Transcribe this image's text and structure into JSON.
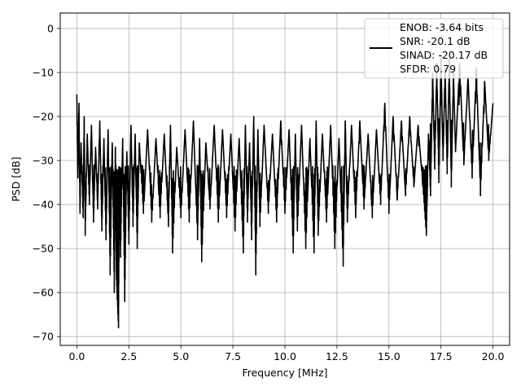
{
  "chart_data": {
    "type": "line",
    "title": "",
    "xlabel": "Frequency [MHz]",
    "ylabel": "PSD [dB]",
    "xlim": [
      -0.8,
      20.8
    ],
    "ylim": [
      -72,
      3.5
    ],
    "xticks": [
      0.0,
      2.5,
      5.0,
      7.5,
      10.0,
      12.5,
      15.0,
      17.5,
      20.0
    ],
    "xtick_labels": [
      "0.0",
      "2.5",
      "5.0",
      "7.5",
      "10.0",
      "12.5",
      "15.0",
      "17.5",
      "20.0"
    ],
    "yticks": [
      0,
      -10,
      -20,
      -30,
      -40,
      -50,
      -60,
      -70
    ],
    "ytick_labels": [
      "0",
      "−10",
      "−20",
      "−30",
      "−40",
      "−50",
      "−60",
      "−70"
    ],
    "grid": true,
    "legend_position": "top-right",
    "line_color": "#000000",
    "series": [
      {
        "name": "",
        "x_start": 0.0,
        "x_end": 20.0,
        "description_points": [
          [
            0.0,
            -15
          ],
          [
            0.05,
            -34
          ],
          [
            0.1,
            -17
          ],
          [
            0.15,
            -42
          ],
          [
            0.2,
            -26
          ],
          [
            0.3,
            -43
          ],
          [
            0.35,
            -20
          ],
          [
            0.4,
            -47
          ],
          [
            0.5,
            -24
          ],
          [
            0.6,
            -40
          ],
          [
            0.7,
            -22
          ],
          [
            0.8,
            -44
          ],
          [
            0.9,
            -27
          ],
          [
            1.0,
            -41
          ],
          [
            1.1,
            -21
          ],
          [
            1.2,
            -46
          ],
          [
            1.3,
            -25
          ],
          [
            1.4,
            -48
          ],
          [
            1.5,
            -23
          ],
          [
            1.6,
            -56
          ],
          [
            1.7,
            -26
          ],
          [
            1.8,
            -60
          ],
          [
            1.85,
            -27
          ],
          [
            1.9,
            -57
          ],
          [
            2.0,
            -68
          ],
          [
            2.05,
            -33
          ],
          [
            2.1,
            -52
          ],
          [
            2.2,
            -25
          ],
          [
            2.3,
            -62
          ],
          [
            2.4,
            -28
          ],
          [
            2.5,
            -49
          ],
          [
            2.6,
            -22
          ],
          [
            2.7,
            -45
          ],
          [
            2.8,
            -24
          ],
          [
            2.9,
            -50
          ],
          [
            3.0,
            -26
          ],
          [
            3.2,
            -42
          ],
          [
            3.4,
            -23
          ],
          [
            3.6,
            -44
          ],
          [
            3.8,
            -25
          ],
          [
            4.0,
            -43
          ],
          [
            4.2,
            -24
          ],
          [
            4.4,
            -45
          ],
          [
            4.5,
            -22
          ],
          [
            4.6,
            -51
          ],
          [
            4.8,
            -27
          ],
          [
            5.0,
            -43
          ],
          [
            5.2,
            -23
          ],
          [
            5.4,
            -44
          ],
          [
            5.6,
            -21
          ],
          [
            5.8,
            -48
          ],
          [
            5.9,
            -25
          ],
          [
            6.0,
            -53
          ],
          [
            6.2,
            -26
          ],
          [
            6.4,
            -41
          ],
          [
            6.6,
            -22
          ],
          [
            6.8,
            -44
          ],
          [
            7.0,
            -23
          ],
          [
            7.2,
            -43
          ],
          [
            7.4,
            -24
          ],
          [
            7.6,
            -46
          ],
          [
            7.8,
            -25
          ],
          [
            8.0,
            -51
          ],
          [
            8.1,
            -22
          ],
          [
            8.2,
            -44
          ],
          [
            8.3,
            -26
          ],
          [
            8.4,
            -48
          ],
          [
            8.5,
            -20
          ],
          [
            8.6,
            -56
          ],
          [
            8.7,
            -23
          ],
          [
            8.8,
            -45
          ],
          [
            9.0,
            -22
          ],
          [
            9.2,
            -42
          ],
          [
            9.4,
            -24
          ],
          [
            9.6,
            -44
          ],
          [
            9.8,
            -21
          ],
          [
            10.0,
            -42
          ],
          [
            10.2,
            -23
          ],
          [
            10.4,
            -51
          ],
          [
            10.5,
            -24
          ],
          [
            10.6,
            -46
          ],
          [
            10.8,
            -22
          ],
          [
            11.0,
            -50
          ],
          [
            11.2,
            -25
          ],
          [
            11.4,
            -51
          ],
          [
            11.5,
            -21
          ],
          [
            11.6,
            -47
          ],
          [
            11.8,
            -24
          ],
          [
            12.0,
            -44
          ],
          [
            12.2,
            -22
          ],
          [
            12.4,
            -50
          ],
          [
            12.6,
            -25
          ],
          [
            12.8,
            -54
          ],
          [
            12.9,
            -21
          ],
          [
            13.0,
            -44
          ],
          [
            13.2,
            -22
          ],
          [
            13.4,
            -43
          ],
          [
            13.6,
            -21
          ],
          [
            13.8,
            -41
          ],
          [
            14.0,
            -24
          ],
          [
            14.2,
            -43
          ],
          [
            14.4,
            -23
          ],
          [
            14.6,
            -40
          ],
          [
            14.8,
            -17
          ],
          [
            15.0,
            -42
          ],
          [
            15.2,
            -20
          ],
          [
            15.4,
            -39
          ],
          [
            15.6,
            -21
          ],
          [
            15.8,
            -38
          ],
          [
            16.0,
            -20
          ],
          [
            16.2,
            -36
          ],
          [
            16.4,
            -22
          ],
          [
            16.6,
            -34
          ],
          [
            16.8,
            -47
          ],
          [
            16.9,
            -24
          ],
          [
            17.0,
            -38
          ],
          [
            17.1,
            -10
          ],
          [
            17.2,
            -32
          ],
          [
            17.3,
            -8
          ],
          [
            17.4,
            -35
          ],
          [
            17.5,
            -6
          ],
          [
            17.6,
            -30
          ],
          [
            17.7,
            -9
          ],
          [
            17.8,
            -33
          ],
          [
            17.9,
            -7
          ],
          [
            18.0,
            -36
          ],
          [
            18.1,
            -10
          ],
          [
            18.2,
            -28
          ],
          [
            18.4,
            -8
          ],
          [
            18.6,
            -31
          ],
          [
            18.8,
            -11
          ],
          [
            19.0,
            -34
          ],
          [
            19.2,
            -9
          ],
          [
            19.4,
            -38
          ],
          [
            19.6,
            -12
          ],
          [
            19.8,
            -30
          ],
          [
            20.0,
            -17
          ]
        ]
      }
    ],
    "legend_entries": [
      "ENOB: -3.64 bits",
      "SNR: -20.1 dB",
      "SINAD: -20.17 dB",
      "SFDR: 0.79"
    ]
  }
}
